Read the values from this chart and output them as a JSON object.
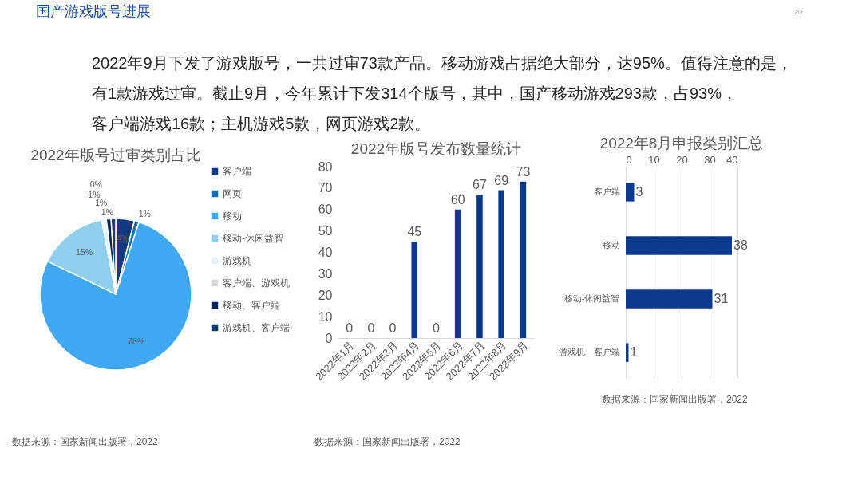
{
  "chart_data": [
    {
      "type": "other",
      "title": "国产游戏版号进展",
      "annotations": [
        "2022年9月下发了游戏版号，一共过审73款产品。移动游戏占据绝大部分，达95%。值得注意的是，",
        "有1款游戏过审。截止9月，今年累计下发314个版号，其中，国产移动游戏293款，占93%，",
        "客户端游戏16款；主机游戏5款，网页游戏2款。",
        "20"
      ]
    },
    {
      "type": "pie",
      "title": "2022年版号过审类别占比",
      "categories": [
        "客户端",
        "网页",
        "移动",
        "移动-休闲益智",
        "游戏机",
        "客户端、游戏机",
        "移动、客户端",
        "游戏机、客户端"
      ],
      "values": [
        4,
        1,
        78,
        15,
        1,
        0,
        1,
        1
      ],
      "colors": [
        "#0d3a80",
        "#1a6fb0",
        "#3fa9f5",
        "#8ecfee",
        "#e3f2fb",
        "#d9d9d9",
        "#0a2257",
        "#143f70"
      ],
      "value_labels": [
        "4%",
        "1%",
        "78%",
        "15%",
        "1%",
        "0%",
        "1%",
        "1%"
      ],
      "legend": "right",
      "annotations": [
        "数据来源：国家新闻出版署，2022"
      ]
    },
    {
      "type": "bar",
      "title": "2022年版号发布数量统计",
      "categories": [
        "2022年1月",
        "2022年2月",
        "2022年3月",
        "2022年4月",
        "2022年5月",
        "2022年6月",
        "2022年7月",
        "2022年8月",
        "2022年9月"
      ],
      "values": [
        0,
        0,
        0,
        45,
        0,
        60,
        67,
        69,
        73
      ],
      "color": "#0b3a8c",
      "ylim": [
        0,
        80
      ],
      "yticks": [
        0,
        10,
        20,
        30,
        40,
        50,
        60,
        70,
        80
      ],
      "grid": false,
      "data_labels": true,
      "annotations": [
        "数据来源：国家新闻出版署，2022"
      ]
    },
    {
      "type": "bar",
      "orientation": "horizontal",
      "title": "2022年8月申报类别汇总",
      "categories": [
        "客户端",
        "移动",
        "移动-休闲益智",
        "游戏机、客户端"
      ],
      "values": [
        3,
        38,
        31,
        1
      ],
      "color": "#0b3a8c",
      "xlim": [
        0,
        40
      ],
      "xticks": [
        0,
        10,
        20,
        30,
        40
      ],
      "grid": "x",
      "data_labels": true,
      "annotations": [
        "数据来源：国家新闻出版署，2022"
      ]
    }
  ]
}
